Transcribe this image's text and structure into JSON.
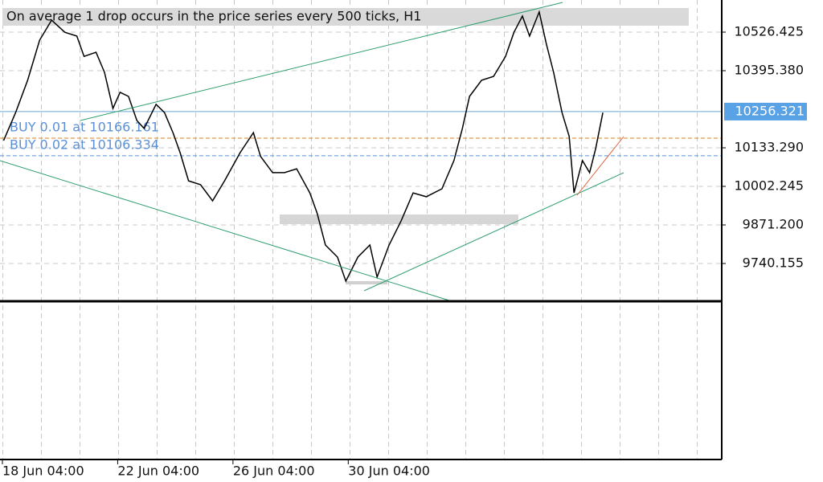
{
  "chart_data": {
    "type": "line",
    "title": "On average 1 drop occurs in the price series every 500 ticks, H1",
    "x": [
      1,
      11,
      21,
      31,
      41,
      52,
      62,
      68,
      78,
      85,
      92,
      98,
      105,
      112,
      118,
      128,
      135,
      142,
      148,
      155,
      165,
      175,
      185,
      198,
      209,
      215,
      225,
      235,
      245,
      256,
      262,
      269,
      279,
      286,
      296,
      306,
      312,
      322,
      332,
      342,
      353,
      366,
      376,
      383,
      389,
      399,
      409,
      419,
      426,
      433,
      439,
      447,
      453,
      459,
      466,
      472,
      476,
      483,
      489,
      494,
      500
    ],
    "values": [
      10158,
      10253,
      10363,
      10499,
      10567,
      10526,
      10513,
      10444,
      10458,
      10390,
      10267,
      10322,
      10308,
      10226,
      10199,
      10281,
      10253,
      10185,
      10117,
      10021,
      10008,
      9953,
      10021,
      10117,
      10185,
      10104,
      10049,
      10049,
      10062,
      9980,
      9912,
      9803,
      9762,
      9680,
      9762,
      9803,
      9694,
      9803,
      9885,
      9980,
      9967,
      9994,
      10090,
      10199,
      10308,
      10363,
      10376,
      10444,
      10526,
      10581,
      10513,
      10595,
      10485,
      10390,
      10253,
      10172,
      9980,
      10090,
      10049,
      10130,
      10253
    ],
    "color": "#000000",
    "xlim": [
      -2,
      599
    ],
    "xticks": [
      {
        "value": 0,
        "label": "18 Jun 04:00"
      },
      {
        "value": 96,
        "label": "22 Jun 04:00"
      },
      {
        "value": 192,
        "label": "26 Jun 04:00"
      },
      {
        "value": 288,
        "label": "30 Jun 04:00"
      }
    ],
    "ylim": [
      9611.84,
      10635.63
    ],
    "yticks": [
      9740.155,
      {
        "value": 9871.2,
        "label": "9871.200"
      },
      10002.245,
      {
        "value": 10133.29,
        "label": "10133.290"
      },
      {
        "value": 10395.38,
        "label": "10395.380"
      },
      10526.425
    ],
    "grid": true,
    "current_price": 10256.321,
    "orders": [
      {
        "label": "BUY 0.01 at 10166.161",
        "price": 10166.161,
        "color": "#d9822b"
      },
      {
        "label": "BUY 0.02 at 10106.334",
        "price": 10106.334,
        "color": "#5b8fd6"
      }
    ]
  }
}
